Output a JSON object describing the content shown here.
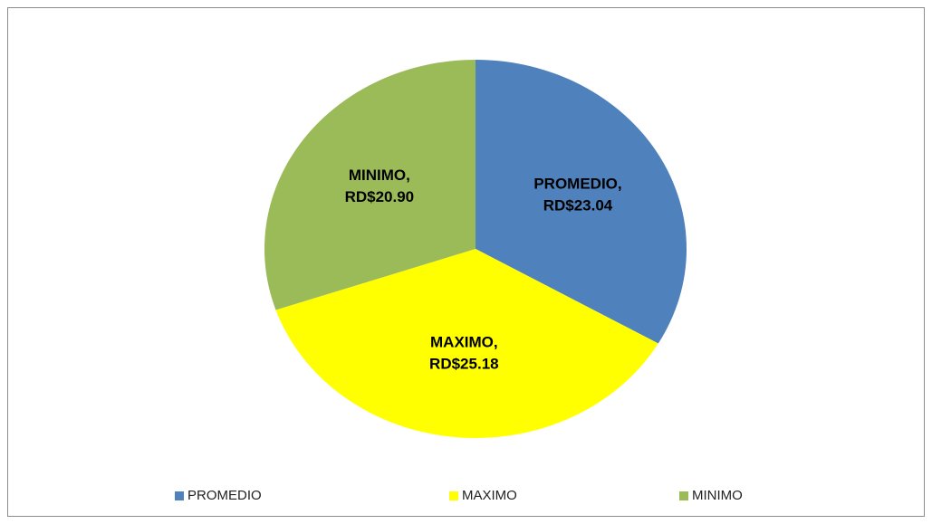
{
  "chart_data": {
    "type": "pie",
    "categories": [
      "PROMEDIO",
      "MAXIMO",
      "MINIMO"
    ],
    "values": [
      23.04,
      25.18,
      20.9
    ],
    "value_labels": [
      "RD$23.04",
      "RD$25.18",
      "RD$20.90"
    ],
    "label_separator": ",",
    "colors": [
      "#4f81bd",
      "#ffff00",
      "#9bbb59"
    ],
    "legend": "bottom"
  }
}
